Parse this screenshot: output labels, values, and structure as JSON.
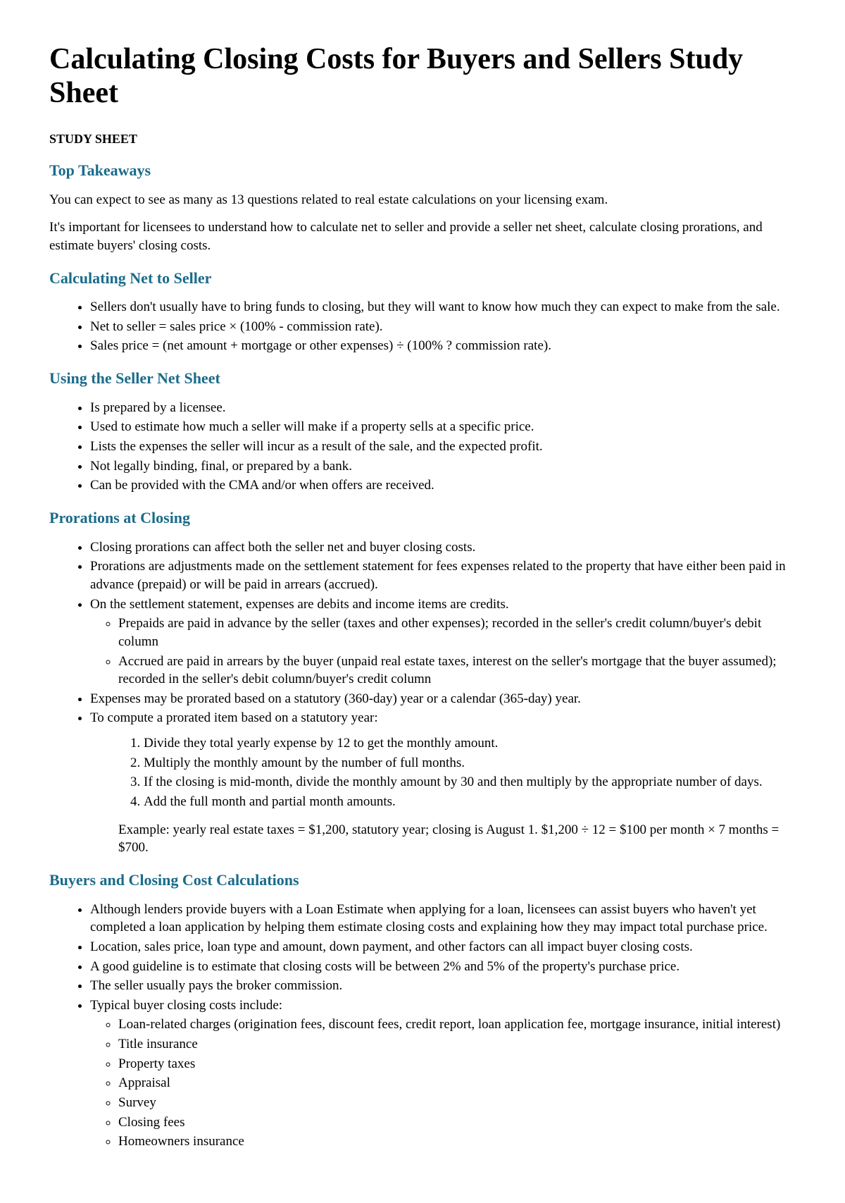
{
  "title": "Calculating Closing Costs for Buyers and Sellers Study Sheet",
  "subtitle": "STUDY SHEET",
  "styles": {
    "heading_color": "#1a6b8a",
    "body_color": "#000000",
    "background_color": "#ffffff",
    "h1_fontsize": 42,
    "h2_fontsize": 22,
    "body_fontsize": 19
  },
  "sections": {
    "takeaways": {
      "heading": "Top Takeaways",
      "p1": "You can expect to see as many as 13 questions related to real estate calculations on your licensing exam.",
      "p2": "It's important for licensees to understand how to calculate net to seller and provide a seller net sheet, calculate closing prorations, and estimate buyers' closing costs."
    },
    "net_to_seller": {
      "heading": "Calculating Net to Seller",
      "items": [
        "Sellers don't usually have to bring funds to closing, but they will want to know how much they can expect to make from the sale.",
        "Net to seller = sales price × (100% - commission rate).",
        "Sales price = (net amount + mortgage or other expenses) ÷ (100% ? commission rate)."
      ]
    },
    "seller_net_sheet": {
      "heading": "Using the Seller Net Sheet",
      "items": [
        "Is prepared by a licensee.",
        "Used to estimate how much a seller will make if a property sells at a specific price.",
        "Lists the expenses the seller will incur as a result of the sale, and the expected profit.",
        "Not legally binding, final, or prepared by a bank.",
        "Can be provided with the CMA and/or when offers are received."
      ]
    },
    "prorations": {
      "heading": "Prorations at Closing",
      "item1": "Closing prorations can affect both the seller net and buyer closing costs.",
      "item2": "Prorations are adjustments made on the settlement statement for fees expenses related to the property that have either been paid in advance (prepaid) or will be paid in arrears (accrued).",
      "item3": "On the settlement statement, expenses are debits and income items are credits.",
      "item3_sub1": "Prepaids are paid in advance by the seller (taxes and other expenses); recorded in the seller's credit column/buyer's debit column",
      "item3_sub2": "Accrued are paid in arrears by the buyer (unpaid real estate taxes, interest on the seller's mortgage that the buyer assumed); recorded in the seller's debit column/buyer's credit column",
      "item4": "Expenses may be prorated based on a statutory (360-day) year or a calendar (365-day) year.",
      "item5": "To compute a prorated item based on a statutory year:",
      "steps": [
        "Divide they total yearly expense by 12 to get the monthly amount.",
        "Multiply the monthly amount by the number of full months.",
        "If the closing is mid-month, divide the monthly amount by 30 and then multiply by the appropriate number of days.",
        "Add the full month and partial month amounts."
      ],
      "example": "Example: yearly real estate taxes = $1,200, statutory year; closing is August 1. $1,200 ÷ 12 = $100 per month × 7 months = $700."
    },
    "buyers": {
      "heading": "Buyers and Closing Cost Calculations",
      "item1": "Although lenders provide buyers with a Loan Estimate when applying for a loan, licensees can assist buyers who haven't yet completed a loan application by helping them estimate closing costs and explaining how they may impact total purchase price.",
      "item2": "Location, sales price, loan type and amount, down payment, and other factors can all impact buyer closing costs.",
      "item3": "A good guideline is to estimate that closing costs will be between 2% and 5% of the property's purchase price.",
      "item4": "The seller usually pays the broker commission.",
      "item5": "Typical buyer closing costs include:",
      "item5_sub": [
        "Loan-related charges (origination fees, discount fees, credit report, loan application fee, mortgage insurance, initial interest)",
        "Title insurance",
        "Property taxes",
        "Appraisal",
        "Survey",
        "Closing fees",
        "Homeowners insurance"
      ]
    }
  }
}
